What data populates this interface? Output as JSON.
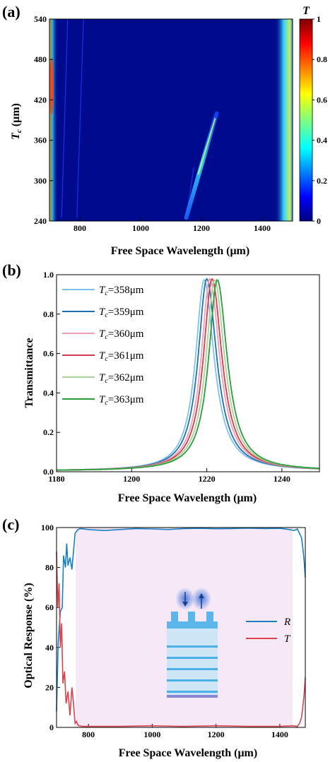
{
  "chart_data": [
    {
      "panel": "(a)",
      "type": "heatmap",
      "xlabel": "Free Space Wavelength (μm)",
      "ylabel": "T_c (μm)",
      "ylabel_main": "T",
      "ylabel_sub": "c",
      "ylabel_unit": " (μm)",
      "xlim": [
        700,
        1500
      ],
      "ylim": [
        240,
        540
      ],
      "xticks": [
        800,
        1000,
        1200,
        1400
      ],
      "yticks": [
        240,
        300,
        360,
        420,
        480,
        540
      ],
      "colorbar": {
        "label": "T",
        "range": [
          0,
          1
        ],
        "ticks": [
          0,
          0.2,
          0.4,
          0.6,
          0.8,
          1
        ]
      },
      "features": [
        {
          "x_start": 1150,
          "x_end": 1250,
          "y_start": 245,
          "y_end": 400,
          "peak": 0.97
        }
      ]
    },
    {
      "panel": "(b)",
      "type": "line",
      "xlabel": "Free Space Wavelength (μm)",
      "ylabel": "Transmittance",
      "xlim": [
        1180,
        1250
      ],
      "ylim": [
        0,
        1.0
      ],
      "xticks": [
        1180,
        1200,
        1220,
        1240
      ],
      "yticks": [
        0.0,
        0.2,
        0.4,
        0.6,
        0.8,
        1.0
      ],
      "legend_position": "top-left",
      "series": [
        {
          "name": "358μm",
          "color": "#7ec3ea",
          "peak_x": 1219.3,
          "peak_y": 0.97,
          "width": 2.8
        },
        {
          "name": "359μm",
          "color": "#1f6fb4",
          "peak_x": 1220.0,
          "peak_y": 0.975,
          "width": 2.8
        },
        {
          "name": "360μm",
          "color": "#f0a0b0",
          "peak_x": 1220.8,
          "peak_y": 0.975,
          "width": 2.8
        },
        {
          "name": "361μm",
          "color": "#d63a4e",
          "peak_x": 1221.4,
          "peak_y": 0.975,
          "width": 2.8
        },
        {
          "name": "362μm",
          "color": "#a9d39a",
          "peak_x": 1222.1,
          "peak_y": 0.97,
          "width": 2.8
        },
        {
          "name": "363μm",
          "color": "#2a9d3a",
          "peak_x": 1222.8,
          "peak_y": 0.97,
          "width": 2.8
        }
      ]
    },
    {
      "panel": "(c)",
      "type": "line",
      "xlabel": "Free Space Wavelength (μm)",
      "ylabel": "Optical Response (%)",
      "xlim": [
        700,
        1480
      ],
      "ylim": [
        0,
        100
      ],
      "xticks": [
        800,
        1000,
        1200,
        1400
      ],
      "yticks": [
        0,
        20,
        40,
        60,
        80,
        100
      ],
      "legend_position": "right",
      "shaded_band": [
        760,
        1440
      ],
      "series": [
        {
          "name": "R",
          "color": "#1a7fc4",
          "x": [
            700,
            705,
            712,
            718,
            722,
            728,
            732,
            736,
            742,
            748,
            752,
            758,
            762,
            768,
            775,
            800,
            850,
            900,
            950,
            1000,
            1050,
            1100,
            1150,
            1200,
            1250,
            1300,
            1350,
            1400,
            1430,
            1445,
            1455,
            1462,
            1468,
            1472,
            1476,
            1480
          ],
          "y": [
            8,
            42,
            58,
            60,
            86,
            80,
            92,
            81,
            85,
            79,
            86,
            97,
            98,
            99,
            99.5,
            99,
            98.5,
            99,
            99.5,
            99.3,
            99,
            99.5,
            99.6,
            99.4,
            99.5,
            99.7,
            99.5,
            99.6,
            99,
            98.5,
            99.3,
            97,
            95,
            90,
            84,
            75
          ]
        },
        {
          "name": "T",
          "color": "#d9434f",
          "x": [
            700,
            704,
            708,
            712,
            716,
            720,
            725,
            730,
            736,
            742,
            748,
            752,
            758,
            762,
            768,
            780,
            820,
            900,
            1000,
            1100,
            1200,
            1300,
            1400,
            1440,
            1455,
            1462,
            1468,
            1472,
            1476,
            1480
          ],
          "y": [
            88,
            60,
            72,
            40,
            52,
            22,
            28,
            12,
            18,
            6,
            20,
            14,
            2,
            3,
            1,
            0.5,
            0.5,
            0.5,
            0.8,
            0.5,
            0.8,
            0.5,
            0.5,
            0.8,
            0.5,
            2,
            5,
            10,
            16,
            25
          ]
        }
      ]
    }
  ]
}
